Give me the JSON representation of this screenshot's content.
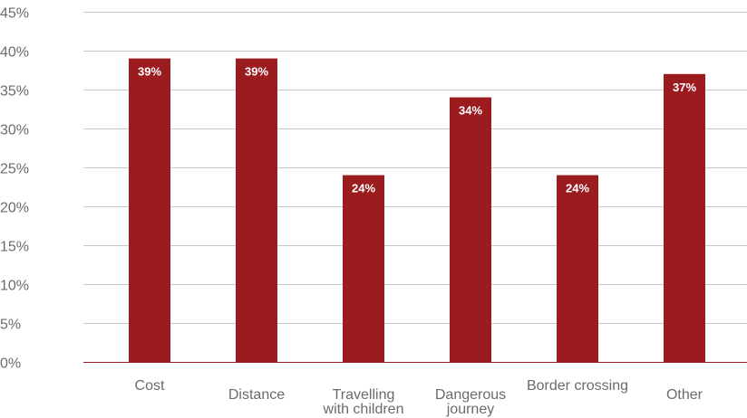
{
  "chart_data": {
    "type": "bar",
    "categories": [
      [
        "Cost"
      ],
      [
        "Distance"
      ],
      [
        "Travelling",
        "with children"
      ],
      [
        "Dangerous",
        "journey"
      ],
      [
        "Border crossing"
      ],
      [
        "Other"
      ]
    ],
    "values": [
      39,
      39,
      24,
      34,
      24,
      37
    ],
    "data_labels": [
      "39%",
      "39%",
      "24%",
      "34%",
      "24%",
      "37%"
    ],
    "title": "",
    "xlabel": "",
    "ylabel": "",
    "ylim": [
      0,
      45
    ],
    "y_ticks": [
      0,
      5,
      10,
      15,
      20,
      25,
      30,
      35,
      40,
      45
    ],
    "y_tick_labels": [
      "0%",
      "5%",
      "10%",
      "15%",
      "20%",
      "25%",
      "30%",
      "35%",
      "40%",
      "45%"
    ],
    "grid": true,
    "legend": "none",
    "bar_color": "#9b1c1f"
  }
}
